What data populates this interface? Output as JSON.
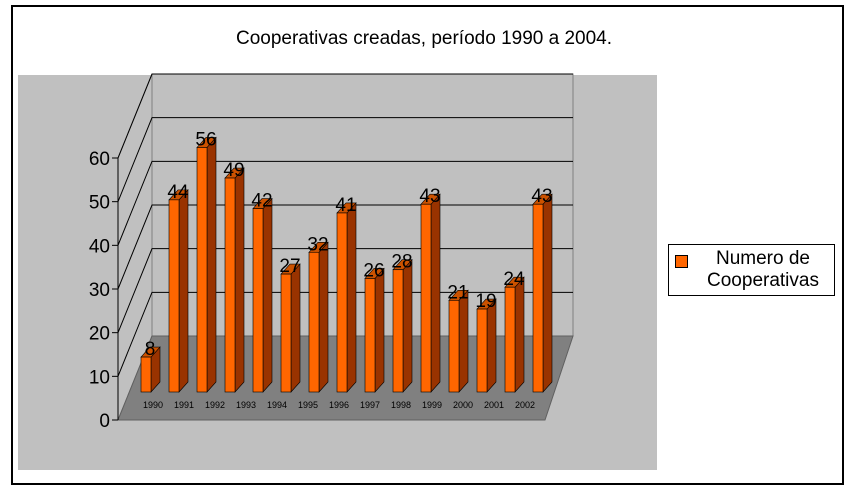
{
  "chart_data": {
    "type": "bar3d",
    "title": "Cooperativas creadas, período 1990 a 2004.",
    "categories": [
      "1990",
      "1991",
      "1992",
      "1993",
      "1994",
      "1995",
      "1996",
      "1997",
      "1998",
      "1999",
      "2000",
      "2001",
      "2002",
      null,
      null
    ],
    "series": [
      {
        "name": "Numero de Cooperativas",
        "color": "#ff6600",
        "values": [
          8,
          44,
          56,
          49,
          42,
          27,
          32,
          41,
          26,
          28,
          43,
          21,
          19,
          24,
          43
        ]
      }
    ],
    "ylim": [
      0,
      60
    ],
    "yticks": [
      0,
      10,
      20,
      30,
      40,
      50,
      60
    ],
    "grid": true,
    "legend": "right"
  }
}
